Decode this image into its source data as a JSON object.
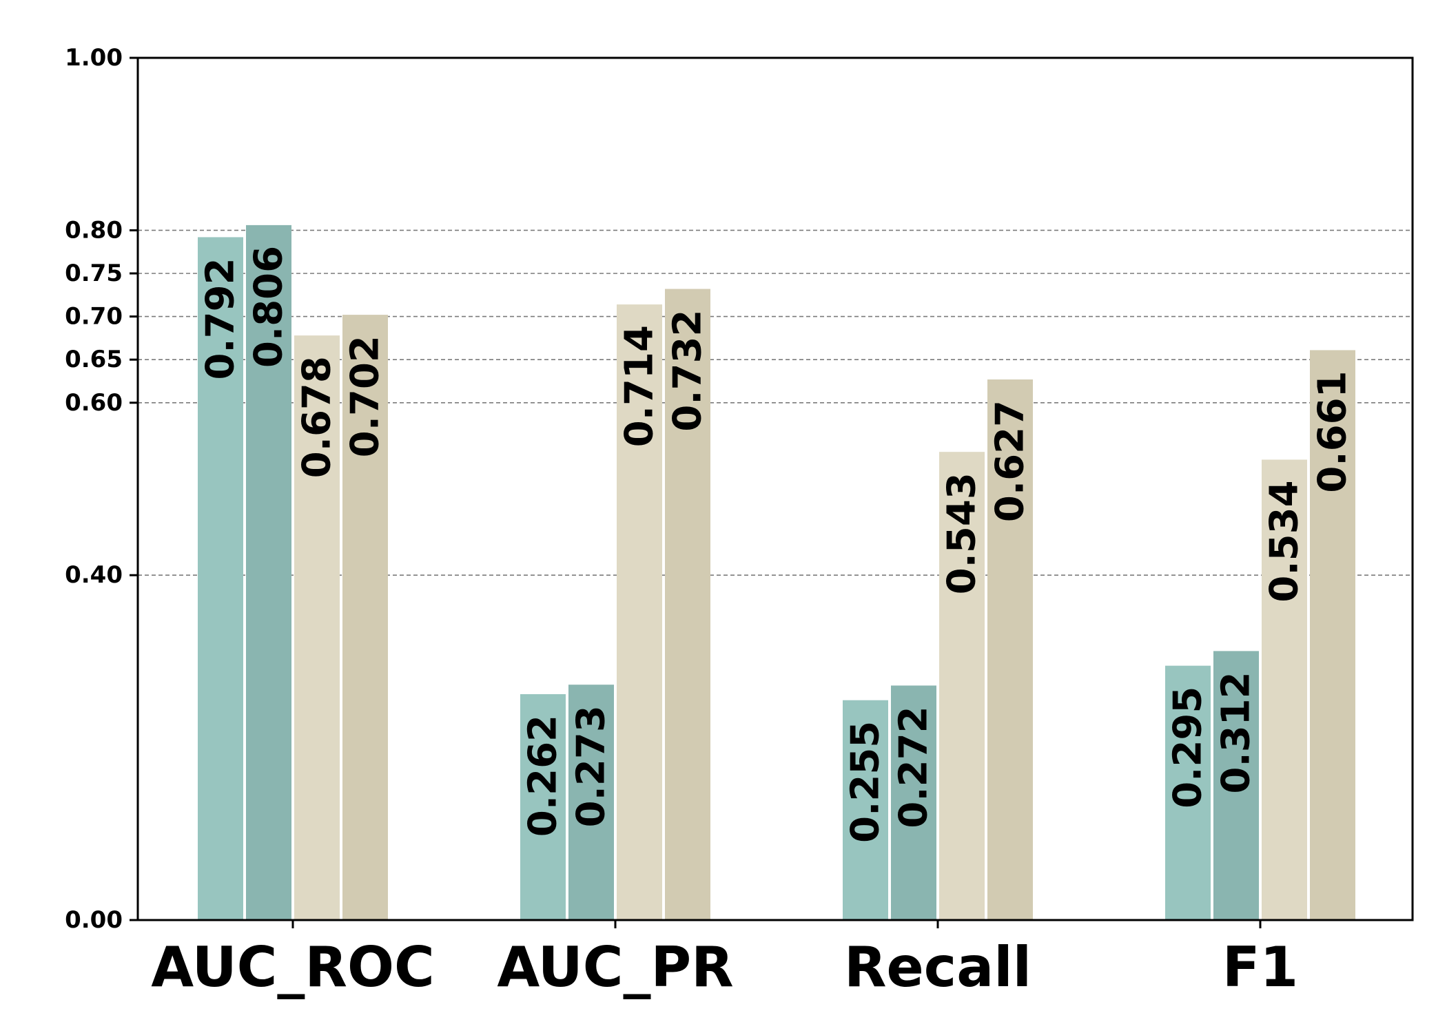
{
  "chart_data": {
    "type": "bar",
    "categories": [
      "AUC_ROC",
      "AUC_PR",
      "Recall",
      "F1"
    ],
    "series": [
      {
        "values": [
          0.792,
          0.262,
          0.255,
          0.295
        ],
        "color": "#98c5bf"
      },
      {
        "values": [
          0.806,
          0.273,
          0.272,
          0.312
        ],
        "color": "#8ab5b0"
      },
      {
        "values": [
          0.678,
          0.714,
          0.543,
          0.534
        ],
        "color": "#dfd9c4"
      },
      {
        "values": [
          0.702,
          0.732,
          0.627,
          0.661
        ],
        "color": "#d2cbb2"
      }
    ],
    "yticks": [
      0.0,
      0.4,
      0.6,
      0.65,
      0.7,
      0.75,
      0.8,
      1.0
    ],
    "ytick_labels": [
      "0.00",
      "0.40",
      "0.60",
      "0.65",
      "0.70",
      "0.75",
      "0.80",
      "1.00"
    ],
    "grid_values": [
      0.4,
      0.6,
      0.65,
      0.7,
      0.75,
      0.8
    ],
    "ylim": [
      0,
      1
    ],
    "grid": true,
    "title": "",
    "xlabel": "",
    "ylabel": ""
  }
}
